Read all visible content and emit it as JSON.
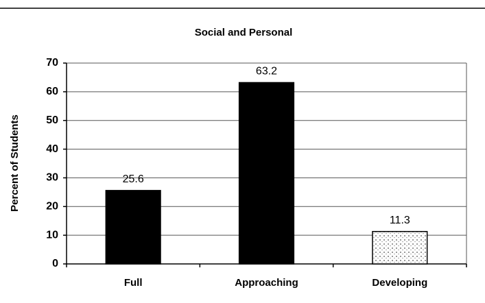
{
  "chart_data": {
    "type": "bar",
    "title": "Social and Personal",
    "y_label": "Percent of Students",
    "categories": [
      "Full",
      "Approaching",
      "Developing"
    ],
    "values": [
      25.6,
      63.2,
      11.3
    ],
    "colors": [
      "#000000",
      "#000000",
      "#ffffff"
    ],
    "ylim": [
      0,
      70
    ],
    "yticks": [
      0,
      10,
      20,
      30,
      40,
      50,
      60,
      70
    ],
    "grid": true
  }
}
